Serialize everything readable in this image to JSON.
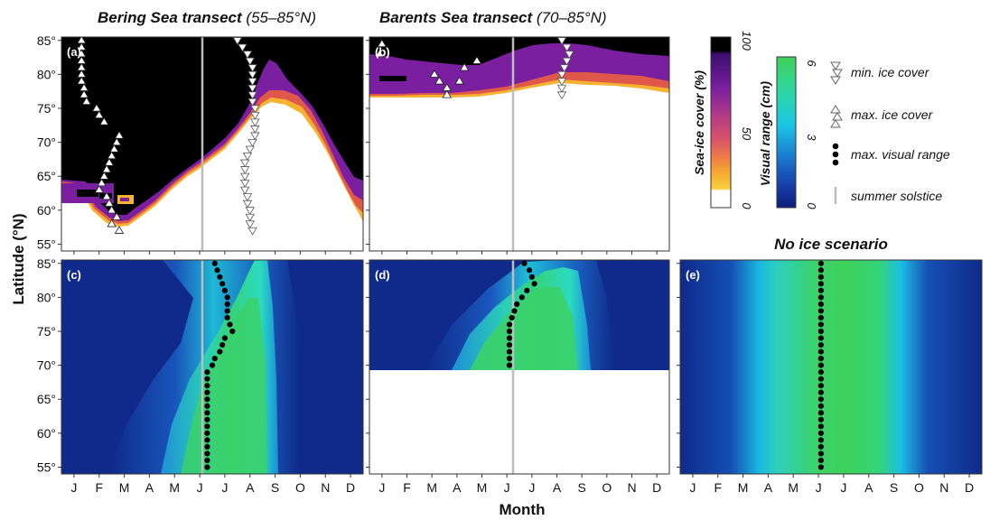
{
  "titles": {
    "bering_main": "Bering Sea transect",
    "bering_sub": "(55–85°N)",
    "barents_main": "Barents Sea transect",
    "barents_sub": "(70–85°N)",
    "noice": "No ice scenario"
  },
  "axes": {
    "ylabel": "Latitude (°N)",
    "xlabel": "Month",
    "lat_ticks": [
      "85°",
      "80°",
      "75°",
      "70°",
      "65°",
      "60°",
      "55°"
    ],
    "month_ticks": [
      "J",
      "F",
      "M",
      "A",
      "M",
      "J",
      "J",
      "A",
      "S",
      "O",
      "N",
      "D"
    ]
  },
  "panel_labels": [
    "(a)",
    "(b)",
    "(c)",
    "(d)",
    "(e)"
  ],
  "colorbars": {
    "ice": {
      "label": "Sea-ice cover (%)",
      "ticks": [
        "100",
        "50",
        "0"
      ],
      "colors": [
        "#000000",
        "#3a0f6e",
        "#6a1c9a",
        "#8e2a9c",
        "#b23a8a",
        "#d2506a",
        "#ea7048",
        "#f5a030",
        "#f8d040",
        "#ffffff"
      ]
    },
    "visual": {
      "label": "Visual range (cm)",
      "ticks": [
        "6",
        "3",
        "0"
      ],
      "colors": [
        "#3fd15a",
        "#2bdfae",
        "#1bc6e6",
        "#1a7fd0",
        "#163fa8",
        "#0e1d7a"
      ]
    }
  },
  "legend": [
    {
      "icon": "down-triangle-icon",
      "label": "min. ice cover"
    },
    {
      "icon": "up-triangle-icon",
      "label": "max. ice cover"
    },
    {
      "icon": "dot-icon",
      "label": "max. visual range"
    },
    {
      "icon": "line-icon",
      "label": "summer solstice"
    }
  ],
  "chart_data": [
    {
      "type": "heatmap",
      "panel": "(a)",
      "value": "sea-ice cover (%)",
      "xlim": [
        0,
        12
      ],
      "ylim": [
        54,
        85.5
      ],
      "summer_solstice_month": 5.7,
      "ice_edge_latitude_by_month": [
        [
          0,
          63
        ],
        [
          1,
          62
        ],
        [
          2,
          60
        ],
        [
          3,
          57
        ],
        [
          4,
          59
        ],
        [
          5,
          65
        ],
        [
          6,
          72
        ],
        [
          7,
          77
        ],
        [
          8,
          76
        ],
        [
          9,
          72
        ],
        [
          10,
          67
        ],
        [
          11,
          60
        ],
        [
          12,
          58
        ]
      ],
      "max_ice_cover": [
        [
          0.8,
          85
        ],
        [
          0.8,
          84
        ],
        [
          0.8,
          83
        ],
        [
          0.8,
          82
        ],
        [
          0.8,
          81
        ],
        [
          0.8,
          80
        ],
        [
          0.8,
          79
        ],
        [
          0.9,
          78
        ],
        [
          0.9,
          77
        ],
        [
          1.0,
          76
        ],
        [
          1.4,
          75
        ],
        [
          1.5,
          74
        ],
        [
          1.7,
          73
        ],
        [
          2.3,
          71
        ],
        [
          2.2,
          70
        ],
        [
          2.1,
          69
        ],
        [
          2.0,
          68
        ],
        [
          1.9,
          67
        ],
        [
          1.8,
          66
        ],
        [
          1.7,
          65
        ],
        [
          1.6,
          64
        ],
        [
          1.5,
          63
        ],
        [
          1.8,
          62
        ],
        [
          1.9,
          61
        ],
        [
          2.0,
          60
        ],
        [
          2.2,
          59
        ],
        [
          2.0,
          58
        ],
        [
          2.3,
          57
        ]
      ],
      "min_ice_cover": [
        [
          7.0,
          85
        ],
        [
          7.2,
          84
        ],
        [
          7.4,
          83
        ],
        [
          7.5,
          82
        ],
        [
          7.6,
          81
        ],
        [
          7.6,
          80
        ],
        [
          7.6,
          79
        ],
        [
          7.6,
          78
        ],
        [
          7.6,
          77
        ],
        [
          7.6,
          76
        ],
        [
          7.7,
          75
        ],
        [
          7.7,
          74
        ],
        [
          7.7,
          73
        ],
        [
          7.7,
          72
        ],
        [
          7.7,
          71
        ],
        [
          7.6,
          70
        ],
        [
          7.5,
          69
        ],
        [
          7.4,
          68
        ],
        [
          7.3,
          67
        ],
        [
          7.3,
          66
        ],
        [
          7.3,
          65
        ],
        [
          7.3,
          64
        ],
        [
          7.3,
          63
        ],
        [
          7.4,
          62
        ],
        [
          7.4,
          61
        ],
        [
          7.5,
          60
        ],
        [
          7.5,
          59
        ],
        [
          7.5,
          58
        ],
        [
          7.6,
          57
        ]
      ]
    },
    {
      "type": "heatmap",
      "panel": "(b)",
      "value": "sea-ice cover (%)",
      "xlim": [
        0,
        12
      ],
      "ylim": [
        54,
        85.5
      ],
      "summer_solstice_month": 5.7,
      "ice_edge_latitude_by_month": [
        [
          0,
          77
        ],
        [
          2,
          76.5
        ],
        [
          3.5,
          76.5
        ],
        [
          5,
          77
        ],
        [
          6,
          78
        ],
        [
          7,
          79.5
        ],
        [
          8,
          80
        ],
        [
          9,
          80
        ],
        [
          10,
          79
        ],
        [
          11,
          78
        ],
        [
          12,
          77
        ]
      ],
      "max_ice_cover": [
        [
          0.5,
          84.5
        ],
        [
          0.4,
          83
        ],
        [
          2.6,
          80
        ],
        [
          2.8,
          79
        ],
        [
          3.1,
          78
        ],
        [
          3.1,
          77
        ],
        [
          3.8,
          81
        ],
        [
          4.3,
          82
        ],
        [
          3.6,
          79
        ]
      ],
      "min_ice_cover": [
        [
          7.7,
          85
        ],
        [
          7.9,
          84
        ],
        [
          8.0,
          83
        ],
        [
          7.9,
          82
        ],
        [
          7.8,
          81
        ],
        [
          7.7,
          80
        ],
        [
          7.7,
          79
        ],
        [
          7.7,
          78
        ],
        [
          7.7,
          77
        ]
      ]
    },
    {
      "type": "heatmap",
      "panel": "(c)",
      "value": "visual range (cm)",
      "xlim": [
        0,
        12
      ],
      "ylim": [
        54,
        85.5
      ],
      "summer_solstice_month": 5.7,
      "max_visual_range": [
        [
          6.1,
          85
        ],
        [
          6.2,
          84
        ],
        [
          6.3,
          83
        ],
        [
          6.4,
          82
        ],
        [
          6.5,
          81
        ],
        [
          6.6,
          80
        ],
        [
          6.6,
          79
        ],
        [
          6.6,
          78
        ],
        [
          6.6,
          77
        ],
        [
          6.7,
          76
        ],
        [
          6.8,
          75
        ],
        [
          6.5,
          74
        ],
        [
          6.4,
          73
        ],
        [
          6.3,
          72
        ],
        [
          6.1,
          71
        ],
        [
          6.0,
          70
        ],
        [
          5.8,
          69
        ],
        [
          5.8,
          68
        ],
        [
          5.8,
          67
        ],
        [
          5.8,
          66
        ],
        [
          5.8,
          65
        ],
        [
          5.8,
          64
        ],
        [
          5.8,
          63
        ],
        [
          5.8,
          62
        ],
        [
          5.8,
          61
        ],
        [
          5.8,
          60
        ],
        [
          5.8,
          59
        ],
        [
          5.8,
          58
        ],
        [
          5.8,
          57
        ],
        [
          5.8,
          56
        ],
        [
          5.8,
          55
        ]
      ]
    },
    {
      "type": "heatmap",
      "panel": "(d)",
      "value": "visual range (cm)",
      "xlim": [
        0,
        12
      ],
      "ylim": [
        54,
        85.5
      ],
      "data_latitude_range": [
        69,
        85.5
      ],
      "summer_solstice_month": 5.7,
      "max_visual_range": [
        [
          6.2,
          85
        ],
        [
          6.4,
          84
        ],
        [
          6.5,
          83
        ],
        [
          6.6,
          82
        ],
        [
          6.3,
          81
        ],
        [
          6.1,
          80
        ],
        [
          5.9,
          79
        ],
        [
          5.8,
          78
        ],
        [
          5.7,
          77
        ],
        [
          5.6,
          76
        ],
        [
          5.6,
          75
        ],
        [
          5.6,
          74
        ],
        [
          5.6,
          73
        ],
        [
          5.6,
          72
        ],
        [
          5.6,
          71
        ],
        [
          5.6,
          70
        ]
      ]
    },
    {
      "type": "heatmap",
      "panel": "(e)",
      "title": "No ice scenario",
      "value": "visual range (cm)",
      "xlim": [
        0,
        12
      ],
      "ylim": [
        54,
        85.5
      ],
      "max_visual_range_month": 5.6,
      "max_visual_range_latitudes": [
        85,
        55
      ]
    }
  ]
}
